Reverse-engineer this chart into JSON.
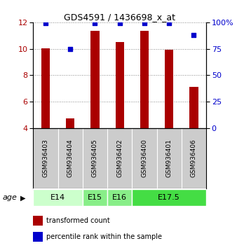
{
  "title": "GDS4591 / 1436698_x_at",
  "samples": [
    "GSM936403",
    "GSM936404",
    "GSM936405",
    "GSM936402",
    "GSM936400",
    "GSM936401",
    "GSM936406"
  ],
  "bar_values": [
    10.05,
    4.75,
    11.35,
    10.5,
    11.35,
    9.9,
    7.1
  ],
  "percentile_values": [
    99,
    75,
    99,
    99,
    99,
    99,
    88
  ],
  "bar_color": "#aa0000",
  "dot_color": "#0000cc",
  "ylim_left": [
    4,
    12
  ],
  "ylim_right": [
    0,
    100
  ],
  "yticks_left": [
    4,
    6,
    8,
    10,
    12
  ],
  "yticks_right": [
    0,
    25,
    50,
    75,
    100
  ],
  "yticklabels_right": [
    "0",
    "25",
    "50",
    "75",
    "100%"
  ],
  "age_groups": [
    {
      "label": "E14",
      "span": [
        0,
        2
      ],
      "color": "#ccffcc"
    },
    {
      "label": "E15",
      "span": [
        2,
        3
      ],
      "color": "#88ee88"
    },
    {
      "label": "E16",
      "span": [
        3,
        4
      ],
      "color": "#88ee88"
    },
    {
      "label": "E17.5",
      "span": [
        4,
        7
      ],
      "color": "#44dd44"
    }
  ],
  "legend_items": [
    {
      "color": "#aa0000",
      "label": "transformed count"
    },
    {
      "color": "#0000cc",
      "label": "percentile rank within the sample"
    }
  ],
  "bar_width": 0.35,
  "dot_size": 18,
  "grid_color": "#888888",
  "background_color": "#ffffff",
  "sample_box_color": "#cccccc",
  "age_label": "age"
}
